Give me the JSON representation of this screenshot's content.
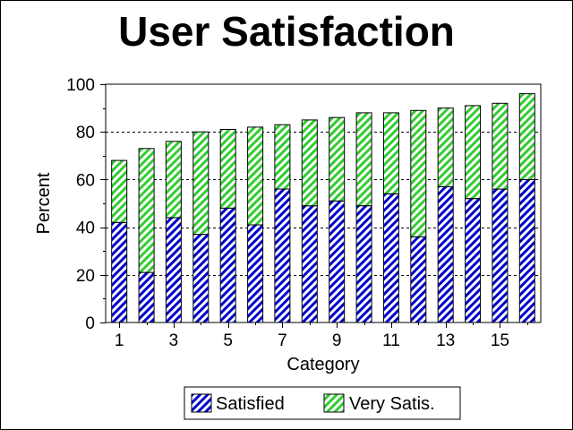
{
  "chart_data": {
    "type": "bar",
    "stacked": true,
    "title": "User Satisfaction",
    "xlabel": "Category",
    "ylabel": "Percent",
    "ylim": [
      0,
      100
    ],
    "yticks": [
      0,
      20,
      40,
      60,
      80,
      100
    ],
    "x": [
      1,
      2,
      3,
      4,
      5,
      6,
      7,
      8,
      9,
      10,
      11,
      12,
      13,
      14,
      15,
      16
    ],
    "xtick_labels": [
      "1",
      "3",
      "5",
      "7",
      "9",
      "11",
      "13",
      "15"
    ],
    "grid": "horizontal-dashed",
    "legend_position": "bottom",
    "series": [
      {
        "name": "Satisfied",
        "color": "#0000cc",
        "values": [
          42,
          21,
          44,
          37,
          48,
          41,
          56,
          49,
          51,
          49,
          54,
          36,
          57,
          52,
          56,
          60
        ]
      },
      {
        "name": "Very Satis.",
        "color": "#33cc33",
        "values": [
          26,
          52,
          32,
          43,
          33,
          41,
          27,
          36,
          35,
          39,
          34,
          53,
          33,
          39,
          36,
          36
        ]
      }
    ]
  }
}
